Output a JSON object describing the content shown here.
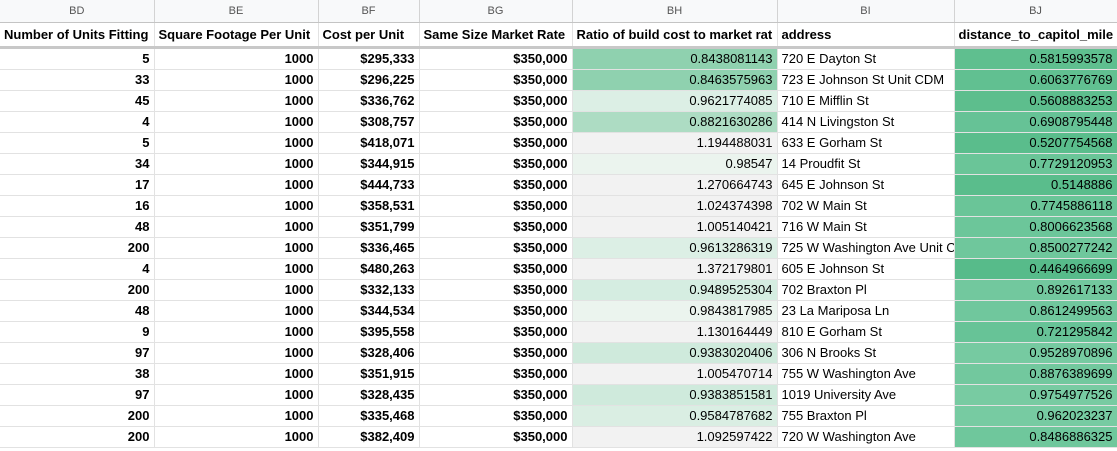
{
  "column_letters": [
    "BD",
    "BE",
    "BF",
    "BG",
    "BH",
    "BI",
    "BJ"
  ],
  "headers": [
    "Number of Units Fitting",
    "Square Footage Per Unit",
    "Cost per Unit",
    "Same Size Market Rate",
    "Ratio of build cost to market rat",
    "address",
    "distance_to_capitol_mile"
  ],
  "colors": {
    "header_bg": "#f8f9fa",
    "ratio_below_one_strong": "#8fd1af",
    "ratio_below_one_mid": "#a9dbc0",
    "ratio_below_one_light": "#d5ede1",
    "ratio_above_one": "#f2f2f2",
    "distance_dark": "#57bb8a",
    "distance_mid": "#63c193",
    "distance_light": "#72c89e"
  },
  "rows": [
    {
      "units": "5",
      "sqft": "1000",
      "cost": "$295,333",
      "market": "$350,000",
      "ratio": "0.8438081143",
      "address": "720 E Dayton St",
      "distance": "0.5815993578",
      "ratio_color": "#8fd1af",
      "dist_color": "#5fbf8f"
    },
    {
      "units": "33",
      "sqft": "1000",
      "cost": "$296,225",
      "market": "$350,000",
      "ratio": "0.8463575963",
      "address": "723 E Johnson St Unit CDM",
      "distance": "0.6063776769",
      "ratio_color": "#8fd1af",
      "dist_color": "#61c091"
    },
    {
      "units": "45",
      "sqft": "1000",
      "cost": "$336,762",
      "market": "$350,000",
      "ratio": "0.9621774085",
      "address": "710 E Mifflin St",
      "distance": "0.5608883253",
      "ratio_color": "#dcefe5",
      "dist_color": "#5dbe8d"
    },
    {
      "units": "4",
      "sqft": "1000",
      "cost": "$308,757",
      "market": "$350,000",
      "ratio": "0.8821630286",
      "address": "414 N Livingston St",
      "distance": "0.6908795448",
      "ratio_color": "#addcc3",
      "dist_color": "#66c296"
    },
    {
      "units": "5",
      "sqft": "1000",
      "cost": "$418,071",
      "market": "$350,000",
      "ratio": "1.194488031",
      "address": "633 E Gorham St",
      "distance": "0.5207754568",
      "ratio_color": "#f2f2f2",
      "dist_color": "#5abd8c"
    },
    {
      "units": "34",
      "sqft": "1000",
      "cost": "$344,915",
      "market": "$350,000",
      "ratio": "0.98547",
      "address": "14 Proudfit St",
      "distance": "0.7729120953",
      "ratio_color": "#ebf4ee",
      "dist_color": "#6ac598"
    },
    {
      "units": "17",
      "sqft": "1000",
      "cost": "$444,733",
      "market": "$350,000",
      "ratio": "1.270664743",
      "address": "645 E Johnson St",
      "distance": "0.5148886",
      "ratio_color": "#f2f2f2",
      "dist_color": "#5abd8c"
    },
    {
      "units": "16",
      "sqft": "1000",
      "cost": "$358,531",
      "market": "$350,000",
      "ratio": "1.024374398",
      "address": "702 W Main St",
      "distance": "0.7745886118",
      "ratio_color": "#f2f2f2",
      "dist_color": "#6ac598"
    },
    {
      "units": "48",
      "sqft": "1000",
      "cost": "$351,799",
      "market": "$350,000",
      "ratio": "1.005140421",
      "address": "716 W Main St",
      "distance": "0.8006623568",
      "ratio_color": "#f2f2f2",
      "dist_color": "#6cc69a"
    },
    {
      "units": "200",
      "sqft": "1000",
      "cost": "$336,465",
      "market": "$350,000",
      "ratio": "0.9613286319",
      "address": "725 W Washington Ave Unit C",
      "distance": "0.8500277242",
      "ratio_color": "#dcefe5",
      "dist_color": "#6fc79c"
    },
    {
      "units": "4",
      "sqft": "1000",
      "cost": "$480,263",
      "market": "$350,000",
      "ratio": "1.372179801",
      "address": "605 E Johnson St",
      "distance": "0.4464966699",
      "ratio_color": "#f2f2f2",
      "dist_color": "#57bb8a"
    },
    {
      "units": "200",
      "sqft": "1000",
      "cost": "$332,133",
      "market": "$350,000",
      "ratio": "0.9489525304",
      "address": "702 Braxton Pl",
      "distance": "0.892617133",
      "ratio_color": "#d5ede1",
      "dist_color": "#72c89e"
    },
    {
      "units": "48",
      "sqft": "1000",
      "cost": "$344,534",
      "market": "$350,000",
      "ratio": "0.9843817985",
      "address": "23 La Mariposa Ln",
      "distance": "0.8612499563",
      "ratio_color": "#ebf4ee",
      "dist_color": "#70c79d"
    },
    {
      "units": "9",
      "sqft": "1000",
      "cost": "$395,558",
      "market": "$350,000",
      "ratio": "1.130164449",
      "address": "810 E Gorham St",
      "distance": "0.721295842",
      "ratio_color": "#f2f2f2",
      "dist_color": "#67c397"
    },
    {
      "units": "97",
      "sqft": "1000",
      "cost": "$328,406",
      "market": "$350,000",
      "ratio": "0.9383020406",
      "address": "306 N Brooks St",
      "distance": "0.9528970896",
      "ratio_color": "#cfeadc",
      "dist_color": "#76caa1"
    },
    {
      "units": "38",
      "sqft": "1000",
      "cost": "$351,915",
      "market": "$350,000",
      "ratio": "1.005470714",
      "address": "755 W Washington Ave",
      "distance": "0.8876389699",
      "ratio_color": "#f2f2f2",
      "dist_color": "#72c89e"
    },
    {
      "units": "97",
      "sqft": "1000",
      "cost": "$328,435",
      "market": "$350,000",
      "ratio": "0.9383851581",
      "address": "1019 University Ave",
      "distance": "0.9754977526",
      "ratio_color": "#cfeadc",
      "dist_color": "#78cba2"
    },
    {
      "units": "200",
      "sqft": "1000",
      "cost": "$335,468",
      "market": "$350,000",
      "ratio": "0.9584787682",
      "address": "755 Braxton Pl",
      "distance": "0.962023237",
      "ratio_color": "#daeee3",
      "dist_color": "#77cba2"
    },
    {
      "units": "200",
      "sqft": "1000",
      "cost": "$382,409",
      "market": "$350,000",
      "ratio": "1.092597422",
      "address": "720 W Washington Ave",
      "distance": "0.8486886325",
      "ratio_color": "#f2f2f2",
      "dist_color": "#6fc79c"
    }
  ]
}
